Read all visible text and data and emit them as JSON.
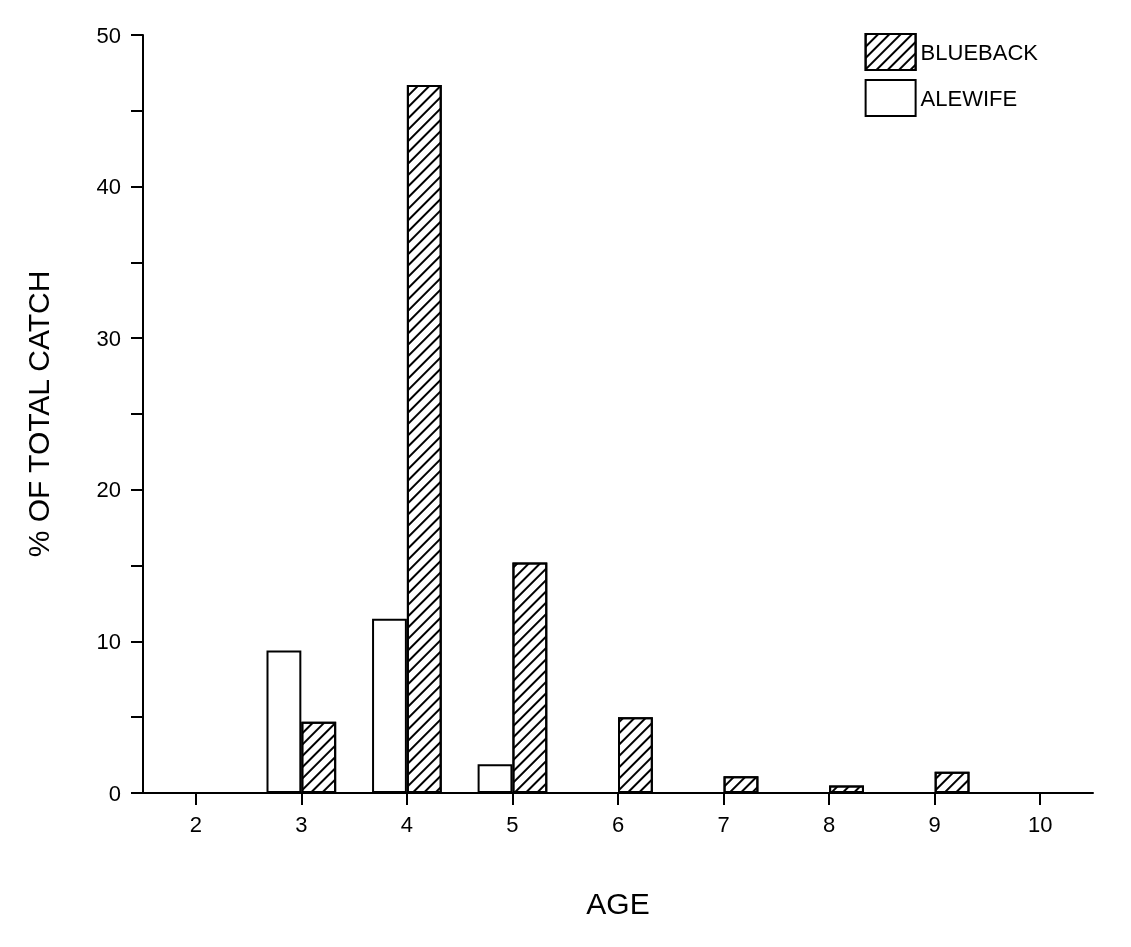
{
  "chart_data": {
    "type": "bar",
    "xlabel": "AGE",
    "ylabel": "% OF TOTAL CATCH",
    "categories": [
      "2",
      "3",
      "4",
      "5",
      "6",
      "7",
      "8",
      "9",
      "10"
    ],
    "series": [
      {
        "name": "ALEWIFE",
        "color": "#ffffff",
        "values": [
          null,
          9.4,
          11.5,
          1.9,
          null,
          null,
          null,
          null,
          null
        ]
      },
      {
        "name": "BLUEBACK",
        "color": "#000000",
        "values": [
          null,
          4.7,
          46.7,
          15.2,
          5.0,
          1.1,
          0.5,
          1.4,
          null
        ]
      }
    ],
    "ylim": [
      0,
      50
    ],
    "yticks": [
      0,
      {
        "value": 5,
        "label": null
      },
      10,
      {
        "value": 15,
        "label": null
      },
      20,
      {
        "value": 25,
        "label": null
      },
      30,
      {
        "value": 35,
        "label": null
      },
      40,
      {
        "value": 45,
        "label": null
      },
      50
    ],
    "grid": false,
    "legend": "top right"
  }
}
